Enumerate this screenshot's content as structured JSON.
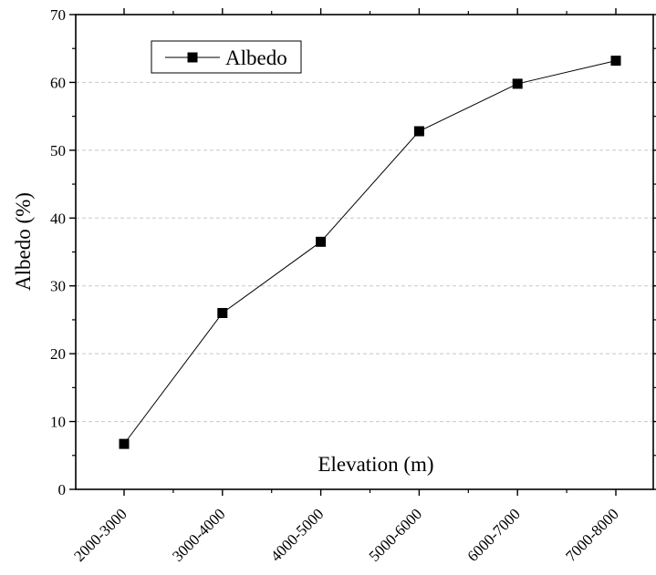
{
  "chart_data": {
    "type": "line",
    "categories": [
      "2000-3000",
      "3000-4000",
      "4000-5000",
      "5000-6000",
      "6000-7000",
      "7000-8000"
    ],
    "series": [
      {
        "name": "Albedo",
        "values": [
          6.7,
          26.0,
          36.5,
          52.8,
          59.8,
          63.2
        ],
        "color": "#000000",
        "marker": "square"
      }
    ],
    "xlabel": "Elevation (m)",
    "ylabel": "Albedo (%)",
    "ylim": [
      0,
      70
    ],
    "yticks": [
      0,
      10,
      20,
      30,
      40,
      50,
      60,
      70
    ],
    "grid": {
      "y": true,
      "x": false,
      "style": "dashed"
    },
    "legend": {
      "placement": "top-left"
    }
  }
}
